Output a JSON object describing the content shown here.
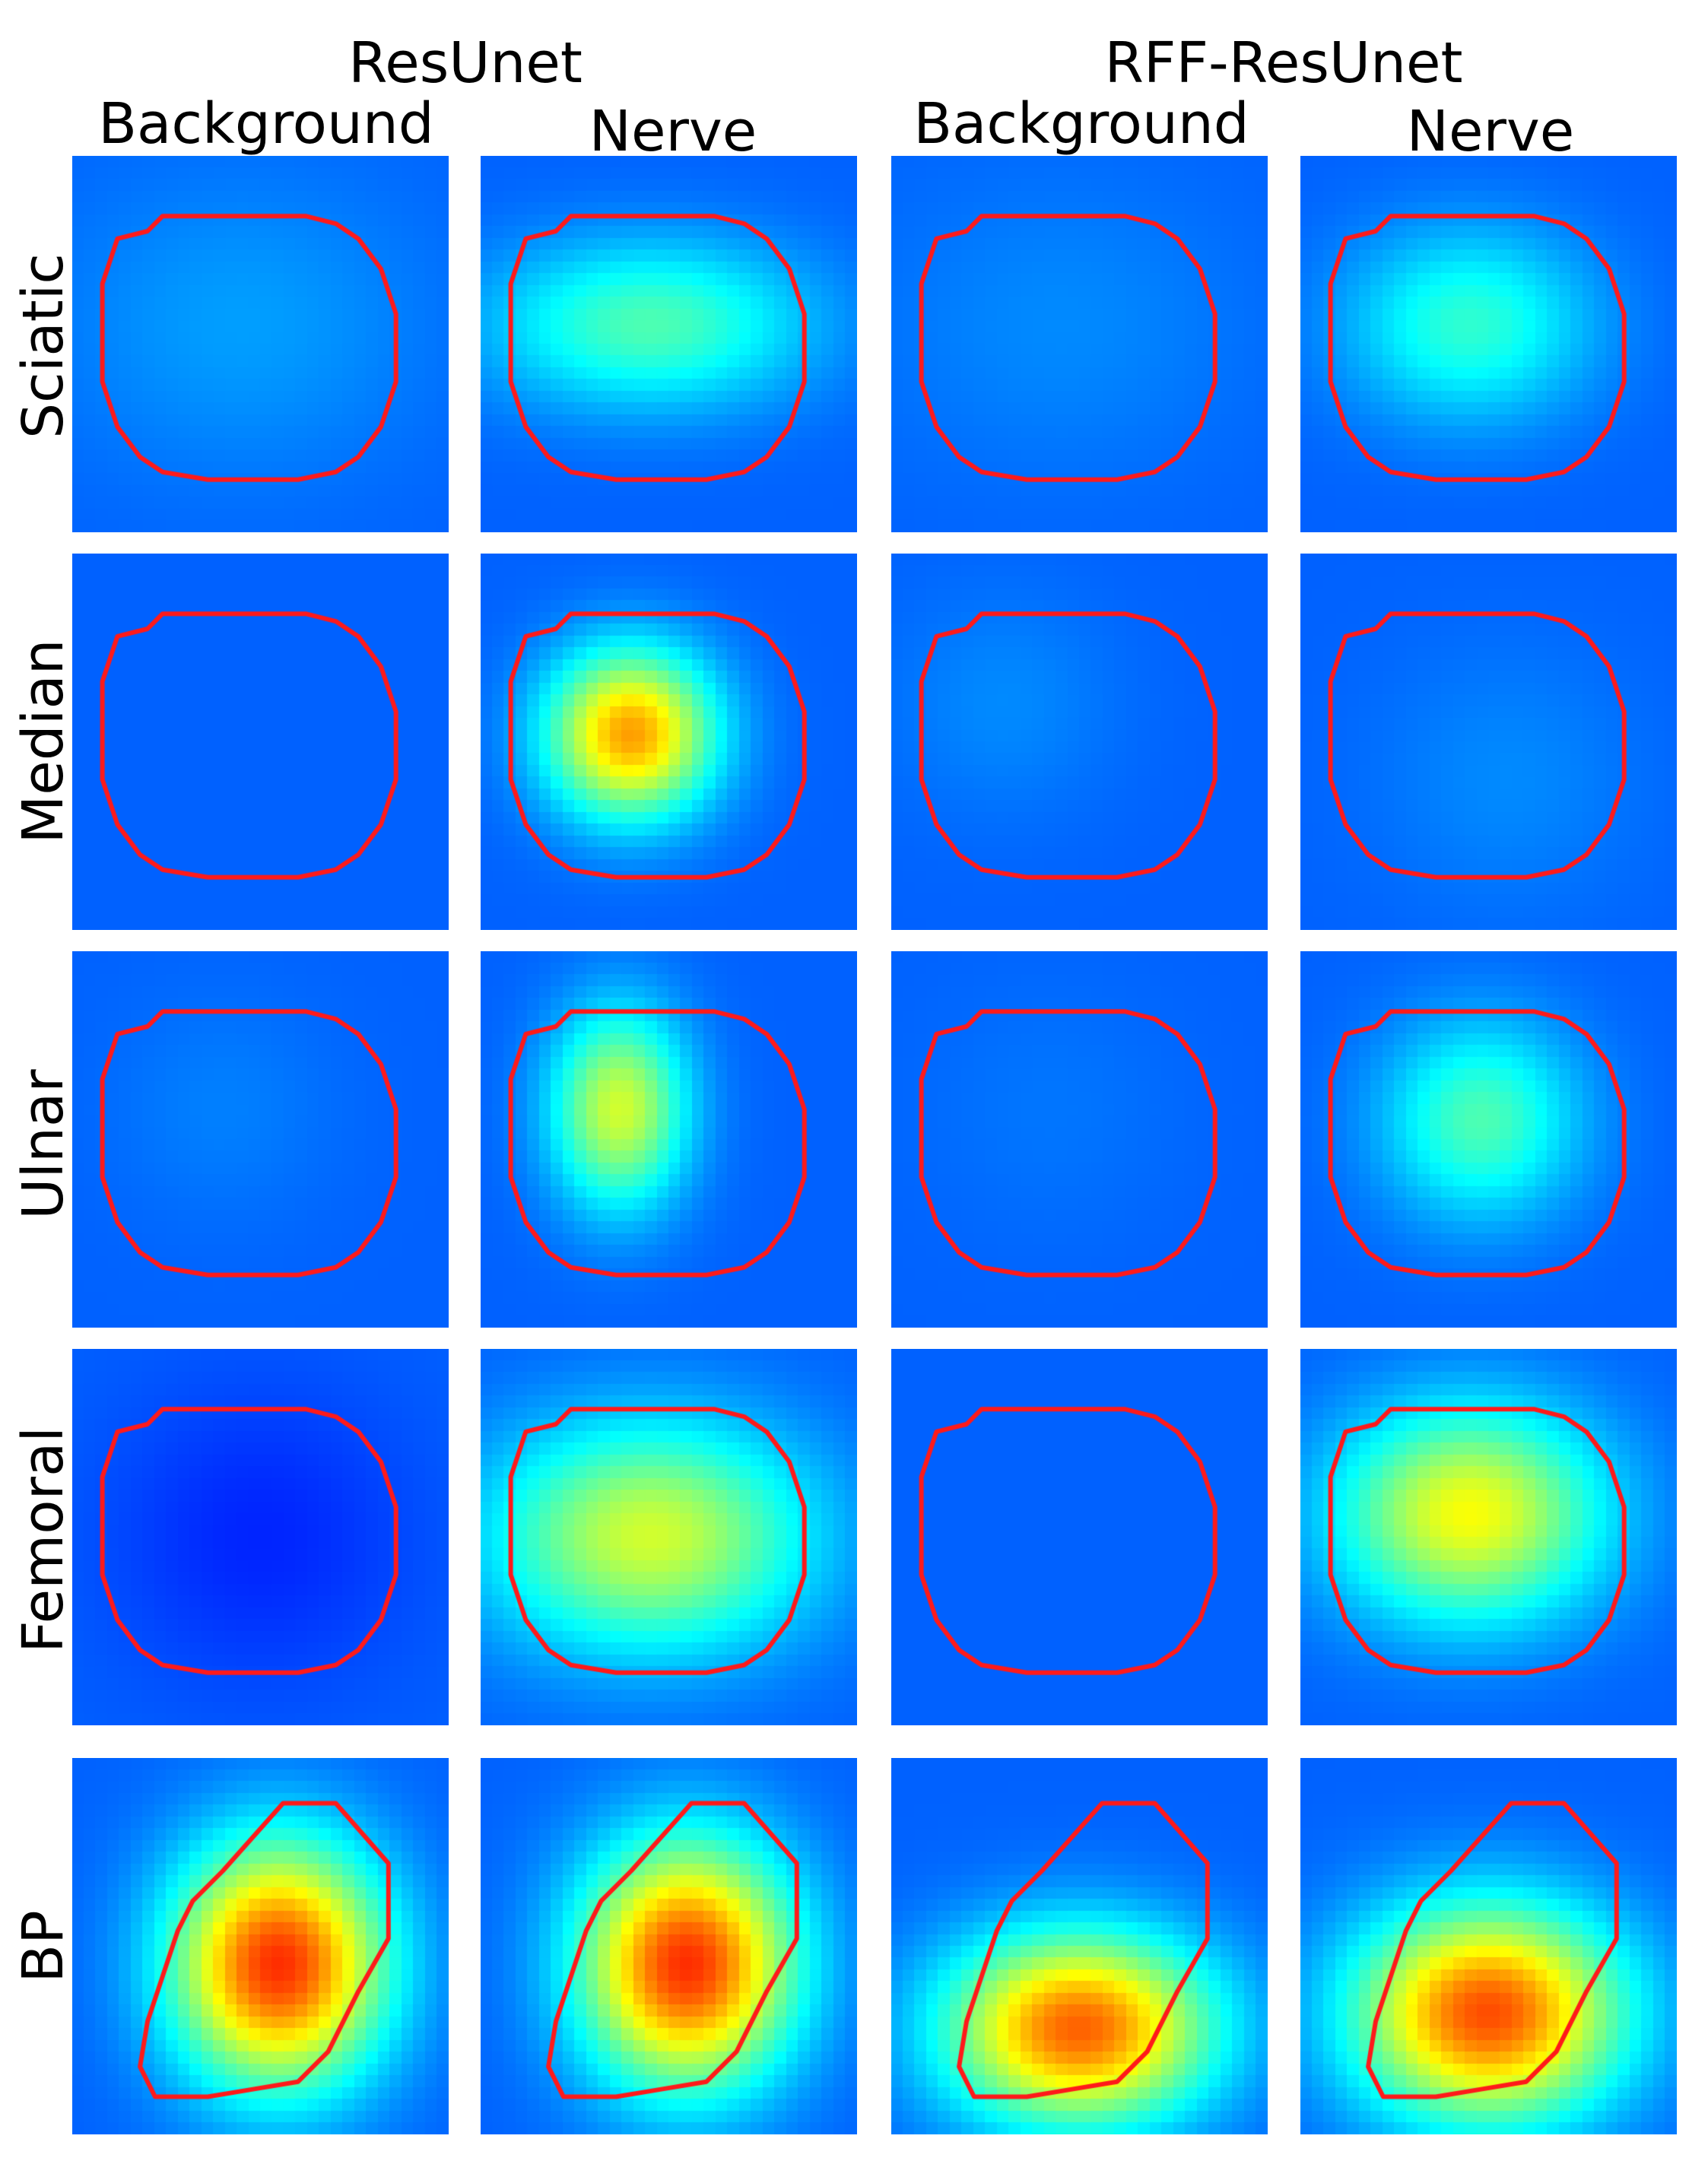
{
  "models": [
    {
      "title": "ResUnet",
      "columns": [
        "Background",
        "Nerve"
      ]
    },
    {
      "title": "RFF-ResUnet",
      "columns": [
        "Background",
        "Nerve"
      ]
    }
  ],
  "rows": [
    {
      "label": "Sciatic",
      "panels": [
        {
          "peak": 0.28,
          "spread": [
            0.5,
            0.4
          ],
          "center": [
            0.45,
            0.45
          ]
        },
        {
          "peak": 0.45,
          "spread": [
            0.42,
            0.22
          ],
          "center": [
            0.45,
            0.45
          ]
        },
        {
          "peak": 0.26,
          "spread": [
            0.5,
            0.4
          ],
          "center": [
            0.45,
            0.45
          ]
        },
        {
          "peak": 0.42,
          "spread": [
            0.32,
            0.25
          ],
          "center": [
            0.45,
            0.45
          ]
        }
      ]
    },
    {
      "label": "Median",
      "panels": [
        {
          "peak": 0.22,
          "spread": [
            0.22,
            0.18
          ],
          "center": [
            0.28,
            0.42
          ]
        },
        {
          "peak": 0.72,
          "spread": [
            0.22,
            0.22
          ],
          "center": [
            0.4,
            0.48
          ]
        },
        {
          "peak": 0.26,
          "spread": [
            0.3,
            0.3
          ],
          "center": [
            0.3,
            0.4
          ]
        },
        {
          "peak": 0.26,
          "spread": [
            0.35,
            0.35
          ],
          "center": [
            0.55,
            0.6
          ]
        }
      ]
    },
    {
      "label": "Ulnar",
      "panels": [
        {
          "peak": 0.25,
          "spread": [
            0.3,
            0.3
          ],
          "center": [
            0.4,
            0.42
          ]
        },
        {
          "peak": 0.58,
          "spread": [
            0.18,
            0.26
          ],
          "center": [
            0.37,
            0.42
          ]
        },
        {
          "peak": 0.24,
          "spread": [
            0.35,
            0.35
          ],
          "center": [
            0.42,
            0.42
          ]
        },
        {
          "peak": 0.45,
          "spread": [
            0.26,
            0.26
          ],
          "center": [
            0.48,
            0.45
          ]
        }
      ]
    },
    {
      "label": "Femoral",
      "panels": [
        {
          "peak": 0.16,
          "spread": [
            0.4,
            0.4
          ],
          "center": [
            0.5,
            0.5
          ]
        },
        {
          "peak": 0.58,
          "spread": [
            0.42,
            0.3
          ],
          "center": [
            0.45,
            0.5
          ]
        },
        {
          "peak": 0.22,
          "spread": [
            0.4,
            0.4
          ],
          "center": [
            0.5,
            0.5
          ]
        },
        {
          "peak": 0.62,
          "spread": [
            0.35,
            0.28
          ],
          "center": [
            0.45,
            0.44
          ]
        }
      ]
    },
    {
      "label": "BP",
      "panels": [
        {
          "peak": 0.83,
          "spread": [
            0.28,
            0.32
          ],
          "center": [
            0.55,
            0.55
          ]
        },
        {
          "peak": 0.83,
          "spread": [
            0.28,
            0.32
          ],
          "center": [
            0.55,
            0.55
          ]
        },
        {
          "peak": 0.78,
          "spread": [
            0.35,
            0.25
          ],
          "center": [
            0.5,
            0.72
          ]
        },
        {
          "peak": 0.8,
          "spread": [
            0.35,
            0.28
          ],
          "center": [
            0.5,
            0.68
          ]
        }
      ]
    }
  ],
  "colors": {
    "contour": "#ff1a1a",
    "colormap": "jet"
  }
}
